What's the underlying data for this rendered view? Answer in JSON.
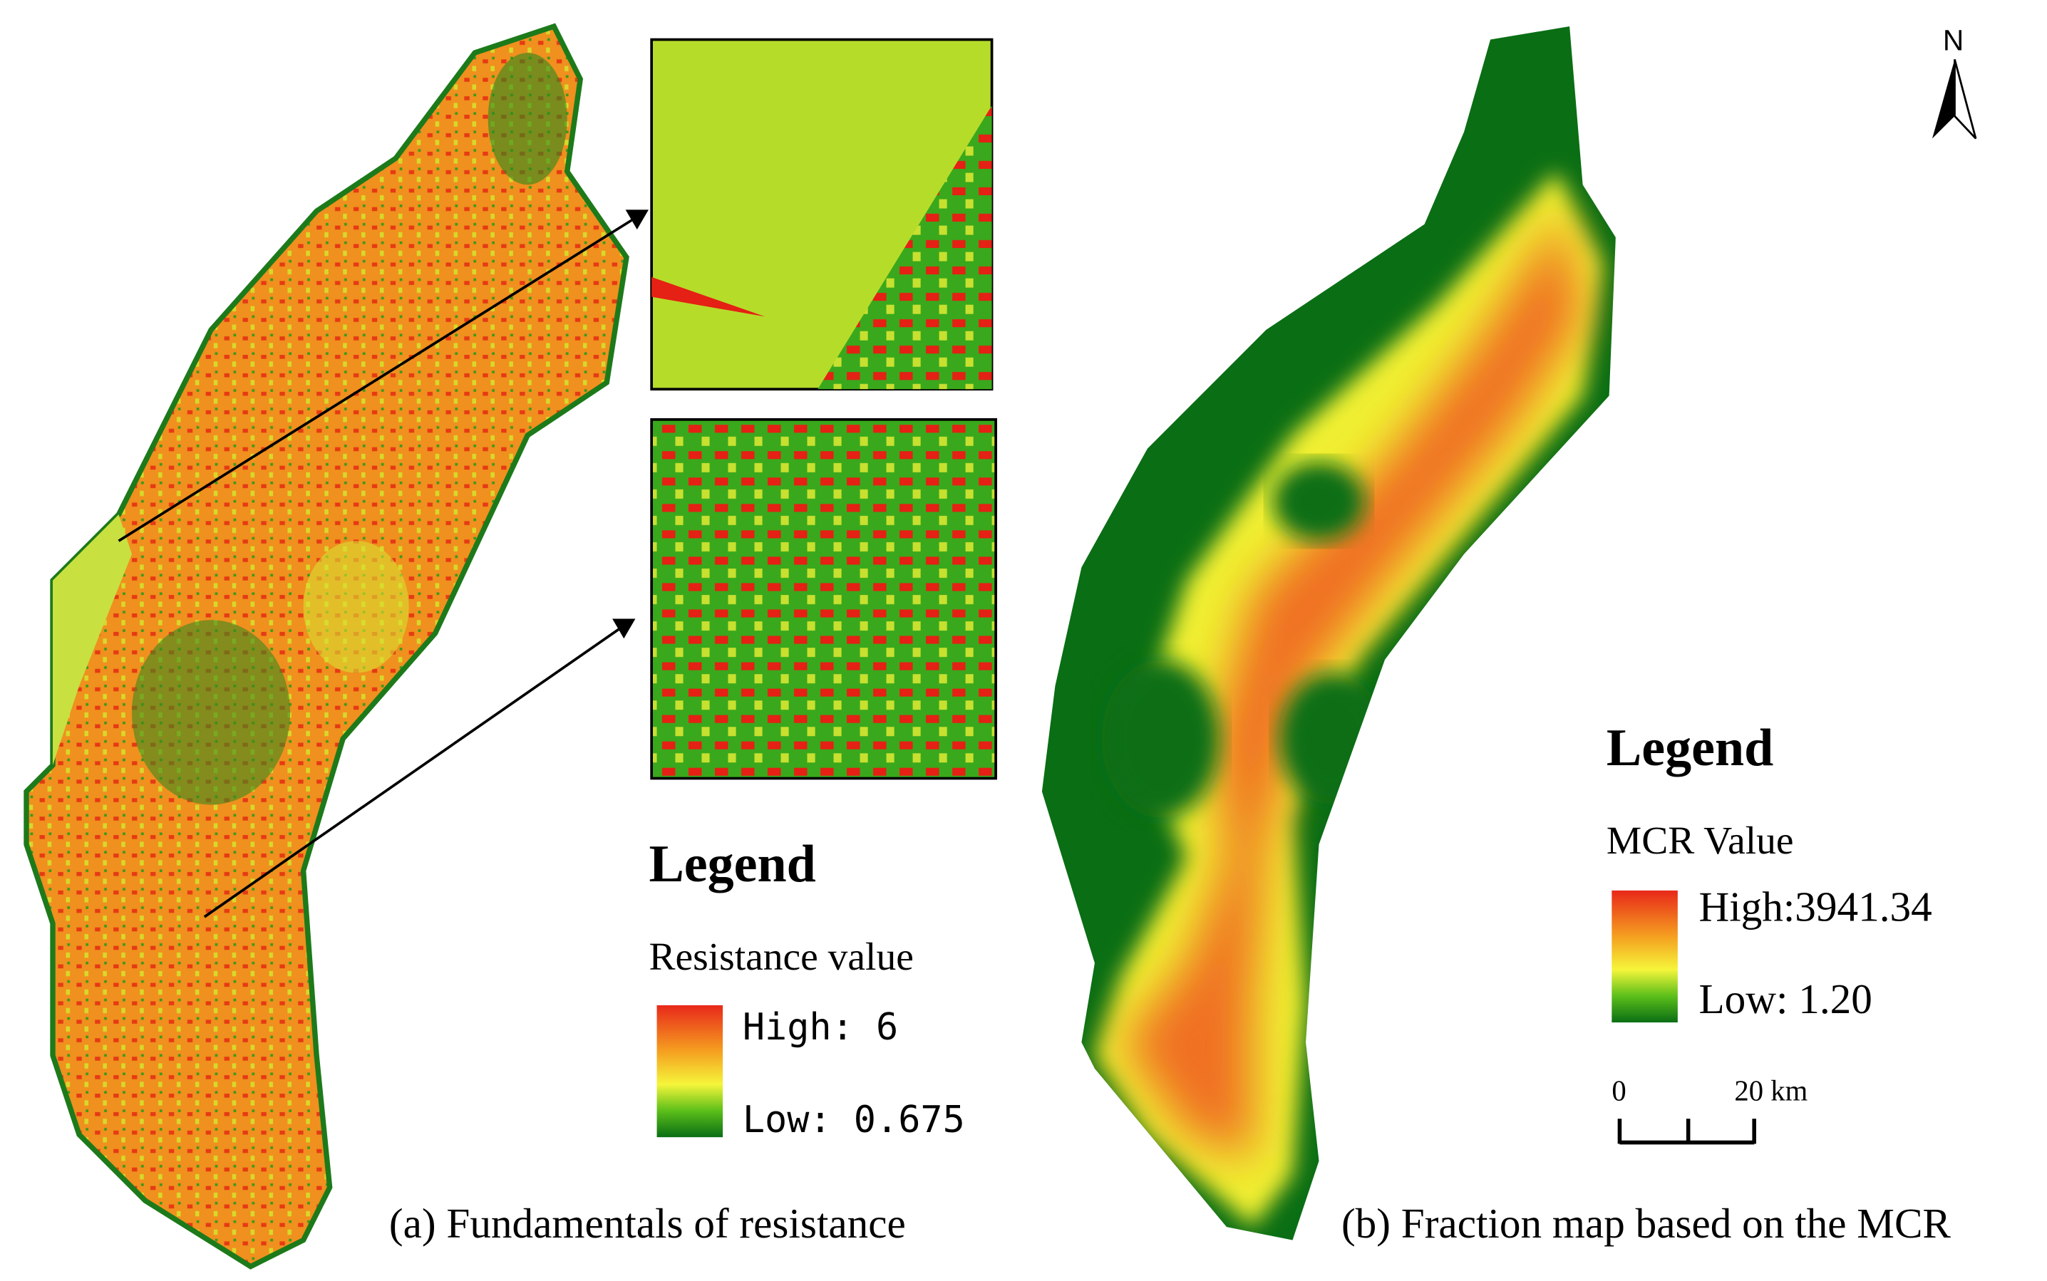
{
  "panel_a": {
    "caption": "(a) Fundamentals of resistance",
    "legend": {
      "title": "Legend",
      "subtitle": "Resistance value",
      "high": "High: 6",
      "low": "Low: 0.675"
    }
  },
  "panel_b": {
    "caption": "(b) Fraction map based on the MCR",
    "legend": {
      "title": "Legend",
      "subtitle": "MCR Value",
      "high": "High:3941.34",
      "low": "Low: 1.20"
    }
  },
  "north_arrow": "N",
  "scale_bar": {
    "start": "0",
    "end": "20 km"
  }
}
